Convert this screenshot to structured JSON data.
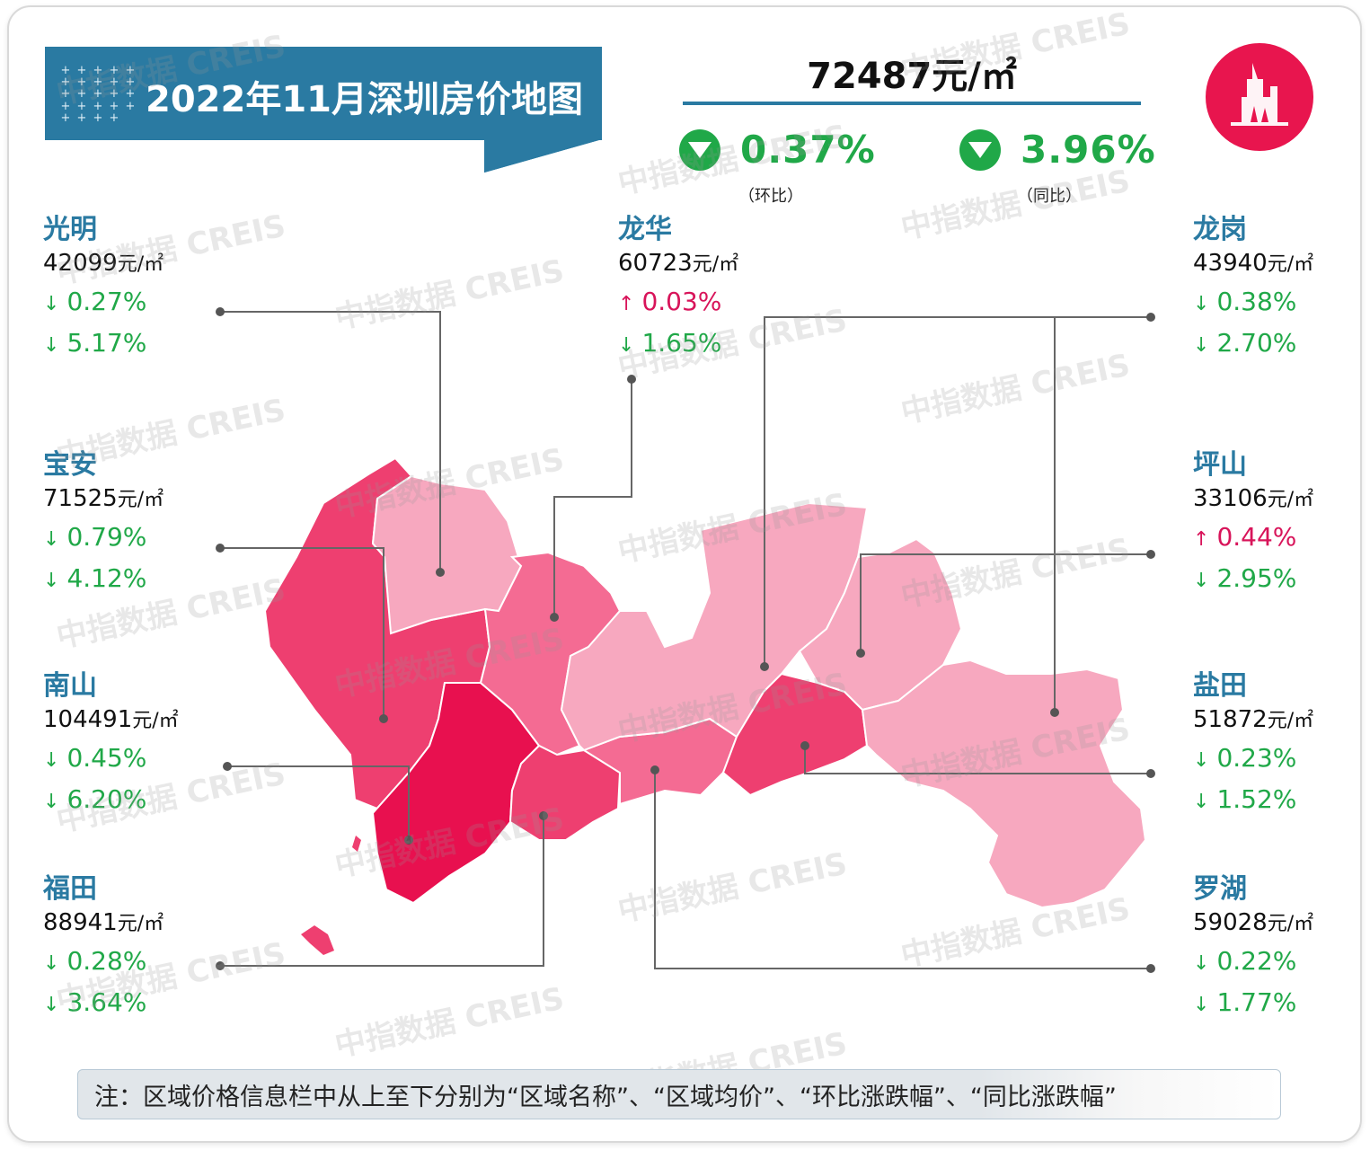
{
  "title": "2022年11月深圳房价地图",
  "avg": {
    "price": "72487元/㎡",
    "mom_pct": "0.37%",
    "mom_caption": "（环比）",
    "yoy_pct": "3.96%",
    "yoy_caption": "（同比）"
  },
  "districts": {
    "guangming": {
      "name": "光明",
      "price": "42099",
      "unit": "元/㎡",
      "mom": "0.27%",
      "mom_dir": "↓",
      "yoy": "5.17%",
      "yoy_dir": "↓"
    },
    "baoan": {
      "name": "宝安",
      "price": "71525",
      "unit": "元/㎡",
      "mom": "0.79%",
      "mom_dir": "↓",
      "yoy": "4.12%",
      "yoy_dir": "↓"
    },
    "nanshan": {
      "name": "南山",
      "price": "104491",
      "unit": "元/㎡",
      "mom": "0.45%",
      "mom_dir": "↓",
      "yoy": "6.20%",
      "yoy_dir": "↓"
    },
    "futian": {
      "name": "福田",
      "price": "88941",
      "unit": "元/㎡",
      "mom": "0.28%",
      "mom_dir": "↓",
      "yoy": "3.64%",
      "yoy_dir": "↓"
    },
    "longhua": {
      "name": "龙华",
      "price": "60723",
      "unit": "元/㎡",
      "mom": "0.03%",
      "mom_dir": "↑",
      "yoy": "1.65%",
      "yoy_dir": "↓"
    },
    "longgang": {
      "name": "龙岗",
      "price": "43940",
      "unit": "元/㎡",
      "mom": "0.38%",
      "mom_dir": "↓",
      "yoy": "2.70%",
      "yoy_dir": "↓"
    },
    "pingshan": {
      "name": "坪山",
      "price": "33106",
      "unit": "元/㎡",
      "mom": "0.44%",
      "mom_dir": "↑",
      "yoy": "2.95%",
      "yoy_dir": "↓"
    },
    "yantian": {
      "name": "盐田",
      "price": "51872",
      "unit": "元/㎡",
      "mom": "0.23%",
      "mom_dir": "↓",
      "yoy": "1.52%",
      "yoy_dir": "↓"
    },
    "luohu": {
      "name": "罗湖",
      "price": "59028",
      "unit": "元/㎡",
      "mom": "0.22%",
      "mom_dir": "↓",
      "yoy": "1.77%",
      "yoy_dir": "↓"
    }
  },
  "colors": {
    "banner": "#2a7aa2",
    "down": "#20a848",
    "up": "#d8145a",
    "tier_top": "#e8104f",
    "tier_high": "#ee3f70",
    "tier_mid": "#f46b93",
    "tier_low": "#f7a8bf"
  },
  "watermark": "中指数据 CREIS",
  "note": "注：区域价格信息栏中从上至下分别为“区域名称”、“区域均价”、“环比涨跌幅”、“同比涨跌幅”"
}
